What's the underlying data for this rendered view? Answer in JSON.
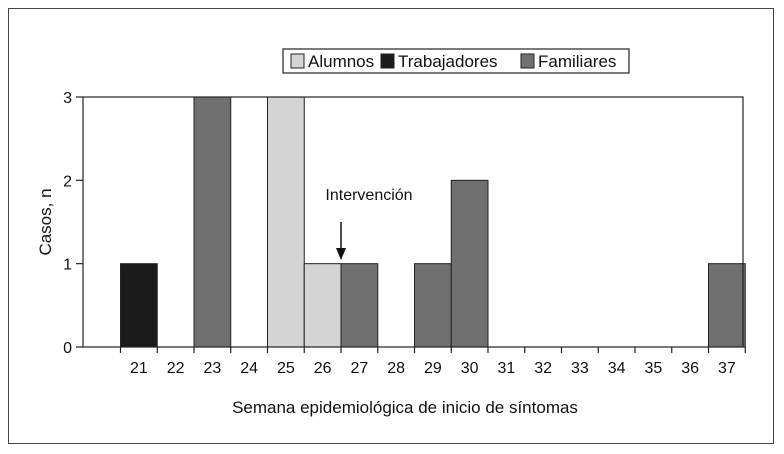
{
  "chart_data": {
    "type": "bar",
    "stacked": true,
    "xlabel": "Semana epidemiológica de inicio de síntomas",
    "ylabel": "Casos, n",
    "ylim": [
      0,
      3
    ],
    "yticks": [
      "0",
      "1",
      "2",
      "3"
    ],
    "categories": [
      "21",
      "22",
      "23",
      "24",
      "25",
      "26",
      "27",
      "28",
      "29",
      "30",
      "31",
      "32",
      "33",
      "34",
      "35",
      "36",
      "37"
    ],
    "series": [
      {
        "name": "Alumnos",
        "color": "#d4d4d4",
        "values": [
          0,
          0,
          0,
          0,
          3,
          1,
          0,
          0,
          0,
          0,
          0,
          0,
          0,
          0,
          0,
          0,
          0
        ]
      },
      {
        "name": "Trabajadores",
        "color": "#1a1a1a",
        "values": [
          1,
          0,
          0,
          0,
          0,
          0,
          0,
          0,
          0,
          0,
          0,
          0,
          0,
          0,
          0,
          0,
          0
        ]
      },
      {
        "name": "Familiares",
        "color": "#707070",
        "values": [
          0,
          0,
          3,
          0,
          0,
          0,
          1,
          0,
          1,
          2,
          0,
          0,
          0,
          0,
          0,
          0,
          1
        ]
      }
    ],
    "legend_position": "top-right",
    "grid": false,
    "annotations": [
      {
        "text": "Intervención",
        "x": "26-27",
        "arrow": true
      }
    ]
  }
}
